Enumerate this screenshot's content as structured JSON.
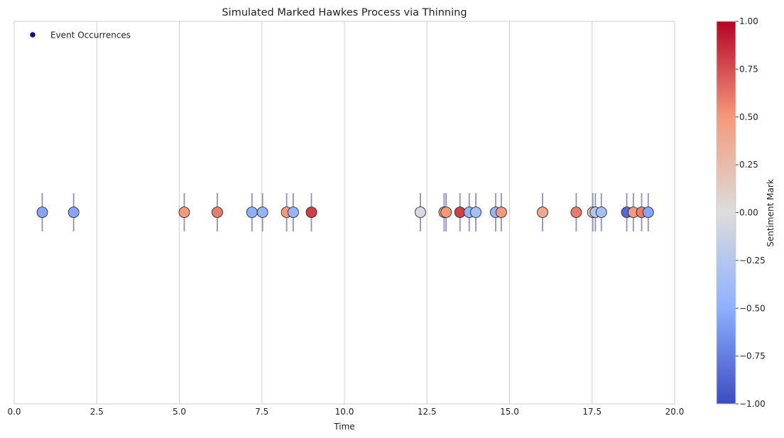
{
  "chart_data": {
    "type": "scatter",
    "title": "Simulated Marked Hawkes Process via Thinning",
    "xlabel": "Time",
    "ylabel": "",
    "xlim": [
      0,
      20
    ],
    "xticks": [
      0,
      2.5,
      5,
      7.5,
      10,
      12.5,
      15,
      17.5,
      20
    ],
    "xtick_labels": [
      "0.0",
      "2.5",
      "5.0",
      "7.5",
      "10.0",
      "12.5",
      "15.0",
      "17.5",
      "20.0"
    ],
    "grid": "vertical",
    "legend": {
      "placement": "top-left",
      "entries": [
        "Event Occurrences"
      ]
    },
    "colorbar": {
      "label": "Sentiment Mark",
      "colormap": "coolwarm",
      "range": [
        -1,
        1
      ],
      "ticks": [
        1.0,
        0.75,
        0.5,
        0.25,
        0.0,
        -0.25,
        -0.5,
        -0.75,
        -1.0
      ],
      "tick_labels": [
        "1.00",
        "0.75",
        "0.50",
        "0.25",
        "0.00",
        "−0.25",
        "−0.50",
        "−0.75",
        "−1.00"
      ]
    },
    "series": [
      {
        "name": "Event Occurrences",
        "points": [
          {
            "t": 0.85,
            "mark": -0.55
          },
          {
            "t": 1.8,
            "mark": -0.55
          },
          {
            "t": 5.15,
            "mark": 0.5
          },
          {
            "t": 6.15,
            "mark": 0.6
          },
          {
            "t": 7.2,
            "mark": -0.5
          },
          {
            "t": 7.52,
            "mark": -0.45
          },
          {
            "t": 8.25,
            "mark": 0.5
          },
          {
            "t": 8.45,
            "mark": -0.45
          },
          {
            "t": 9.0,
            "mark": 0.8
          },
          {
            "t": 12.3,
            "mark": -0.05
          },
          {
            "t": 13.02,
            "mark": 0.4
          },
          {
            "t": 13.08,
            "mark": 0.5
          },
          {
            "t": 13.5,
            "mark": 0.8
          },
          {
            "t": 13.78,
            "mark": -0.45
          },
          {
            "t": 13.98,
            "mark": -0.35
          },
          {
            "t": 14.58,
            "mark": -0.45
          },
          {
            "t": 14.75,
            "mark": 0.5
          },
          {
            "t": 16.0,
            "mark": 0.4
          },
          {
            "t": 17.02,
            "mark": 0.6
          },
          {
            "t": 17.52,
            "mark": 0.15
          },
          {
            "t": 17.6,
            "mark": -0.25
          },
          {
            "t": 17.78,
            "mark": -0.35
          },
          {
            "t": 18.55,
            "mark": -0.85
          },
          {
            "t": 18.75,
            "mark": 0.5
          },
          {
            "t": 19.0,
            "mark": 0.6
          },
          {
            "t": 19.2,
            "mark": -0.55
          }
        ]
      }
    ],
    "colors": {
      "marker_edge": "#1a1a1a",
      "stem": "#8f8fc0",
      "legend_marker": "#0d0d80",
      "grid": "#d0d0d0",
      "axes": "#cccccc"
    }
  }
}
